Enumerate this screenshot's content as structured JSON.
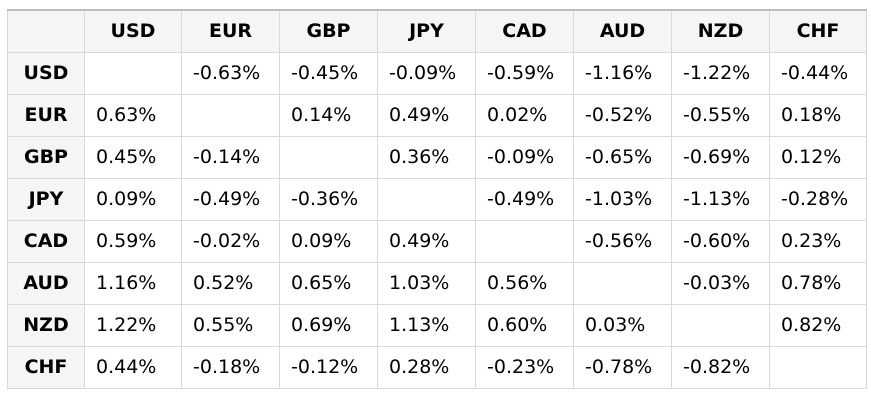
{
  "table": {
    "corner": "",
    "columns": [
      "USD",
      "EUR",
      "GBP",
      "JPY",
      "CAD",
      "AUD",
      "NZD",
      "CHF"
    ],
    "rows": [
      {
        "label": "USD",
        "cells": [
          "",
          "-0.63%",
          "-0.45%",
          "-0.09%",
          "-0.59%",
          "-1.16%",
          "-1.22%",
          "-0.44%"
        ]
      },
      {
        "label": "EUR",
        "cells": [
          "0.63%",
          "",
          "0.14%",
          "0.49%",
          "0.02%",
          "-0.52%",
          "-0.55%",
          "0.18%"
        ]
      },
      {
        "label": "GBP",
        "cells": [
          "0.45%",
          "-0.14%",
          "",
          "0.36%",
          "-0.09%",
          "-0.65%",
          "-0.69%",
          "0.12%"
        ]
      },
      {
        "label": "JPY",
        "cells": [
          "0.09%",
          "-0.49%",
          "-0.36%",
          "",
          "-0.49%",
          "-1.03%",
          "-1.13%",
          "-0.28%"
        ]
      },
      {
        "label": "CAD",
        "cells": [
          "0.59%",
          "-0.02%",
          "0.09%",
          "0.49%",
          "",
          "-0.56%",
          "-0.60%",
          "0.23%"
        ]
      },
      {
        "label": "AUD",
        "cells": [
          "1.16%",
          "0.52%",
          "0.65%",
          "1.03%",
          "0.56%",
          "",
          "-0.03%",
          "0.78%"
        ]
      },
      {
        "label": "NZD",
        "cells": [
          "1.22%",
          "0.55%",
          "0.69%",
          "1.13%",
          "0.60%",
          "0.03%",
          "",
          "0.82%"
        ]
      },
      {
        "label": "CHF",
        "cells": [
          "0.44%",
          "-0.18%",
          "-0.12%",
          "0.28%",
          "-0.23%",
          "-0.78%",
          "-0.82%",
          ""
        ]
      }
    ]
  }
}
